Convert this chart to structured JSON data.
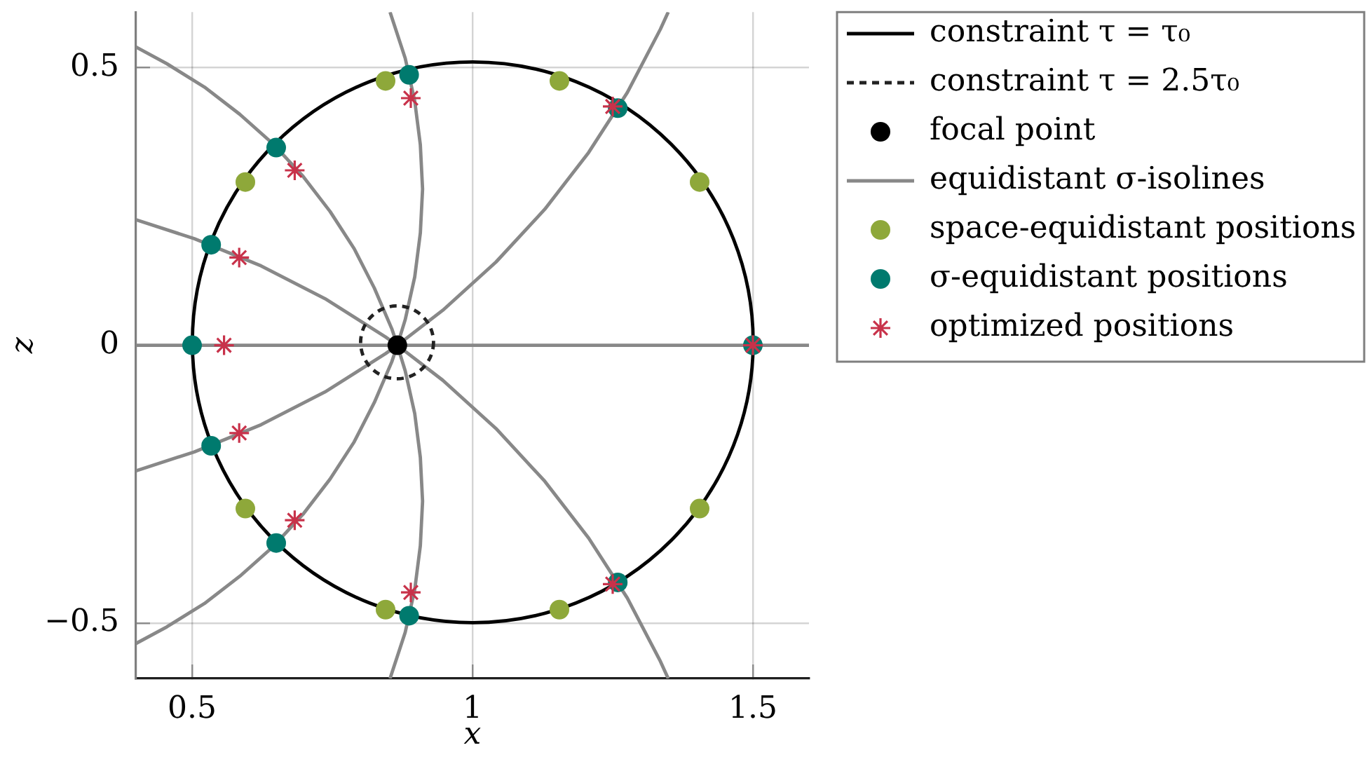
{
  "chart_data": {
    "type": "line",
    "xlabel": "x",
    "ylabel": "z",
    "xlim": [
      0.4,
      1.6
    ],
    "ylim": [
      -0.6,
      0.6
    ],
    "xticks": [
      0.5,
      1,
      1.5
    ],
    "yticks": [
      {
        "value": -0.5,
        "label": "−0.5"
      },
      0,
      0.5
    ],
    "grid": true,
    "legend": "top right",
    "series": [
      {
        "name": "constraint τ = τ₀",
        "color": "#000000",
        "marker": "none",
        "line_style": "solid"
      },
      {
        "name": "constraint τ = 2.5τ₀",
        "color": "#222222",
        "marker": "none",
        "line_style": "dashed"
      },
      {
        "name": "focal point",
        "type": "scatter",
        "color": "#000000",
        "marker": "circle",
        "x": [
          0.866
        ],
        "values": [
          0
        ]
      },
      {
        "name": "equidistant σ-isolines",
        "color": "#888888",
        "marker": "none",
        "line_style": "solid",
        "x": [
          0.853,
          0.88,
          0.897,
          0.907,
          0.911,
          0.907,
          0.897,
          0.88,
          0.866,
          0.856,
          0.825,
          0.789,
          0.746,
          0.698,
          0.644,
          0.585,
          0.522,
          0.455,
          0.4
        ],
        "values": [
          0.6,
          0.517,
          0.44,
          0.361,
          0.281,
          0.202,
          0.123,
          0.046,
          0,
          -0.03,
          -0.103,
          -0.174,
          -0.241,
          -0.304,
          -0.363,
          -0.416,
          -0.465,
          -0.507,
          -0.537
        ]
      },
      {
        "color": "#888888",
        "marker": "none",
        "line_style": "solid",
        "x": [
          0.853,
          0.88,
          0.897,
          0.907,
          0.911,
          0.907,
          0.897,
          0.88,
          0.866,
          0.856,
          0.825,
          0.789,
          0.746,
          0.698,
          0.644,
          0.585,
          0.522,
          0.455,
          0.4
        ],
        "values": [
          -0.6,
          -0.517,
          -0.44,
          -0.361,
          -0.281,
          -0.202,
          -0.123,
          -0.046,
          0,
          0.03,
          0.103,
          0.174,
          0.241,
          0.304,
          0.363,
          0.416,
          0.465,
          0.507,
          0.537
        ]
      },
      {
        "color": "#888888",
        "marker": "none",
        "line_style": "solid",
        "x": [
          1.349,
          1.335,
          1.276,
          1.207,
          1.129,
          1.042,
          0.947,
          0.866,
          0.845,
          0.737,
          0.623,
          0.504,
          0.4
        ],
        "values": [
          0.6,
          0.569,
          0.455,
          0.347,
          0.245,
          0.15,
          0.063,
          0,
          -0.015,
          -0.084,
          -0.143,
          -0.192,
          -0.226
        ]
      },
      {
        "color": "#888888",
        "marker": "none",
        "line_style": "solid",
        "x": [
          1.349,
          1.335,
          1.276,
          1.207,
          1.129,
          1.042,
          0.947,
          0.866,
          0.845,
          0.737,
          0.623,
          0.504,
          0.4
        ],
        "values": [
          -0.6,
          -0.569,
          -0.455,
          -0.347,
          -0.245,
          -0.15,
          -0.063,
          0,
          0.015,
          0.084,
          0.143,
          0.192,
          0.226
        ]
      },
      {
        "color": "#888888",
        "marker": "none",
        "line_style": "solid",
        "x": [
          0.4,
          1.6
        ],
        "values": [
          0,
          0
        ]
      },
      {
        "name": "space-equidistant positions",
        "type": "scatter",
        "color": "#8ea83a",
        "marker": "circle",
        "x": [
          1.405,
          1.155,
          0.845,
          0.595,
          0.595,
          0.845,
          1.155,
          1.405
        ],
        "values": [
          0.294,
          0.476,
          0.476,
          0.294,
          -0.294,
          -0.476,
          -0.476,
          -0.294
        ]
      },
      {
        "name": "σ-equidistant positions",
        "type": "scatter",
        "color": "#007a6e",
        "marker": "circle",
        "x": [
          1.5,
          1.259,
          0.887,
          0.65,
          0.534,
          0.5,
          0.534,
          0.65,
          0.887,
          1.259
        ],
        "values": [
          0,
          0.427,
          0.487,
          0.356,
          0.181,
          0,
          -0.181,
          -0.356,
          -0.487,
          -0.427
        ]
      },
      {
        "name": "optimized positions",
        "type": "scatter",
        "color": "#c8324a",
        "marker": "cross",
        "x": [
          1.5,
          1.25,
          0.89,
          0.683,
          0.584,
          0.557,
          0.584,
          0.683,
          0.89,
          1.25
        ],
        "values": [
          0,
          0.43,
          0.445,
          0.315,
          0.158,
          0,
          -0.158,
          -0.315,
          -0.445,
          -0.43
        ]
      }
    ]
  }
}
